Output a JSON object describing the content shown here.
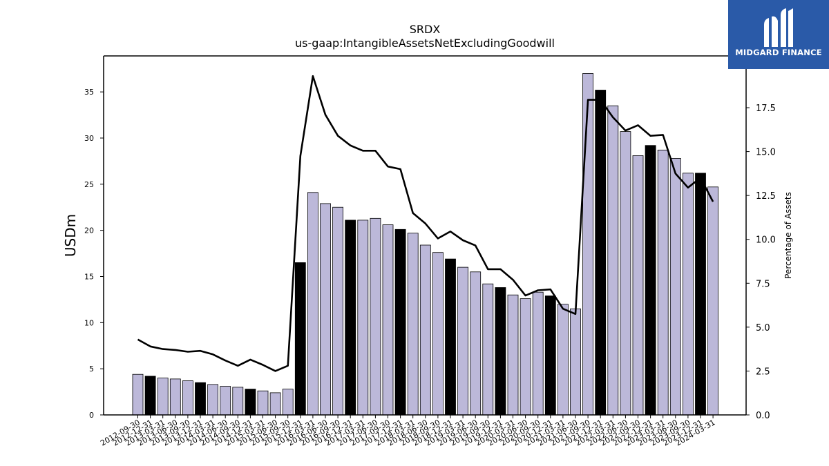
{
  "logo": {
    "text": "MIDGARD FINANCE"
  },
  "chart_data": {
    "type": "bar",
    "title": "SRDX",
    "subtitle": "us-gaap:IntangibleAssetsNetExcludingGoodwill",
    "ylabel": "USDm",
    "y2label": "Percentage of Assets",
    "ylim": [
      0,
      38.9
    ],
    "y2lim": [
      0,
      20.45
    ],
    "yticks": [
      "0",
      "5",
      "10",
      "15",
      "20",
      "25",
      "30",
      "35"
    ],
    "y2ticks": [
      "0.0",
      "2.5",
      "5.0",
      "7.5",
      "10.0",
      "12.5",
      "15.0",
      "17.5"
    ],
    "categories": [
      "2012-09-30",
      "2012-12-31",
      "2013-03-31",
      "2013-06-30",
      "2013-09-30",
      "2013-12-31",
      "2014-03-31",
      "2014-06-30",
      "2014-09-30",
      "2014-12-31",
      "2015-03-31",
      "2015-06-30",
      "2015-09-30",
      "2015-12-31",
      "2016-03-31",
      "2016-06-30",
      "2016-09-30",
      "2016-12-31",
      "2017-03-31",
      "2017-06-30",
      "2017-09-30",
      "2017-12-31",
      "2018-03-31",
      "2018-06-30",
      "2018-09-30",
      "2018-12-31",
      "2019-03-31",
      "2019-06-30",
      "2019-09-30",
      "2019-12-31",
      "2020-03-31",
      "2020-06-30",
      "2020-09-30",
      "2020-12-31",
      "2021-03-31",
      "2021-06-30",
      "2021-09-30",
      "2021-12-31",
      "2022-03-31",
      "2022-06-30",
      "2022-09-30",
      "2022-12-31",
      "2023-03-31",
      "2023-06-30",
      "2023-09-30",
      "2023-12-31",
      "2024-03-31"
    ],
    "series": [
      {
        "kind": "bar",
        "values": [
          4.4,
          4.2,
          4.0,
          3.9,
          3.7,
          3.5,
          3.3,
          3.1,
          3.0,
          2.8,
          2.6,
          2.4,
          2.8,
          16.5,
          24.1,
          22.9,
          22.5,
          21.1,
          21.1,
          21.3,
          20.6,
          20.1,
          19.7,
          18.4,
          17.6,
          16.9,
          16.0,
          15.5,
          14.2,
          13.8,
          13.0,
          12.6,
          13.3,
          12.9,
          12.0,
          11.5,
          37.0,
          35.2,
          33.5,
          30.7,
          28.1,
          29.2,
          28.7,
          27.8,
          26.2,
          26.2,
          24.7
        ],
        "highlight": [
          false,
          true,
          false,
          false,
          false,
          true,
          false,
          false,
          false,
          true,
          false,
          false,
          false,
          true,
          false,
          false,
          false,
          true,
          false,
          false,
          false,
          true,
          false,
          false,
          false,
          true,
          false,
          false,
          false,
          true,
          false,
          false,
          false,
          true,
          false,
          false,
          false,
          true,
          false,
          false,
          false,
          true,
          false,
          false,
          false,
          true,
          false
        ]
      },
      {
        "kind": "line",
        "axis": "right",
        "values": [
          4.3,
          3.9,
          3.75,
          3.7,
          3.6,
          3.65,
          3.45,
          3.1,
          2.8,
          3.15,
          2.85,
          2.5,
          2.8,
          14.75,
          19.3,
          17.1,
          15.9,
          15.35,
          15.05,
          15.05,
          14.15,
          14.0,
          11.5,
          10.9,
          10.05,
          10.45,
          9.95,
          9.65,
          8.3,
          8.3,
          7.7,
          6.8,
          7.1,
          7.15,
          6.05,
          5.75,
          17.95,
          17.95,
          16.95,
          16.2,
          16.5,
          15.9,
          15.95,
          13.75,
          12.95,
          13.5,
          12.15
        ]
      }
    ],
    "colors": {
      "bar": "#bcb8d9",
      "bar_highlight": "#000000",
      "line": "#000000",
      "logo_bg": "#2a5aa8"
    }
  }
}
